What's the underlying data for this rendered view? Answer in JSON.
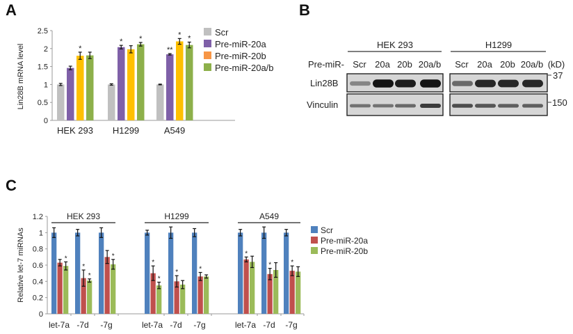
{
  "panels": {
    "a": "A",
    "b": "B",
    "c": "C"
  },
  "chart_data": [
    {
      "type": "bar",
      "panel": "A",
      "ylabel": "Lin28B mRNA level",
      "ylim": [
        0,
        2.5
      ],
      "yticks": [
        "0",
        "0.5",
        "1",
        "1.5",
        "2",
        "2.5"
      ],
      "categories": [
        "HEK 293",
        "H1299",
        "A549"
      ],
      "legend_position": "right",
      "series": [
        {
          "name": "Scr",
          "color": "#c0c0c0",
          "legend_color": "#c0c0c0",
          "values": [
            1.0,
            1.0,
            1.0
          ],
          "errors": [
            0.03,
            0.02,
            0.01
          ],
          "stars": [
            "",
            "",
            ""
          ]
        },
        {
          "name": "Pre-miR-20a",
          "color": "#7f60a8",
          "legend_color": "#7f60a8",
          "values": [
            1.46,
            2.04,
            1.84
          ],
          "errors": [
            0.05,
            0.05,
            0.02
          ],
          "stars": [
            "",
            "*",
            "**"
          ]
        },
        {
          "name": "Pre-miR-20b",
          "color": "#ffc000",
          "legend_color": "#f79646",
          "values": [
            1.8,
            1.98,
            2.2
          ],
          "errors": [
            0.1,
            0.1,
            0.08
          ],
          "stars": [
            "*",
            "",
            "*"
          ]
        },
        {
          "name": "Pre-miR-20a/b",
          "color": "#8db04a",
          "legend_color": "#8db04a",
          "values": [
            1.81,
            2.12,
            2.1
          ],
          "errors": [
            0.09,
            0.05,
            0.08
          ],
          "stars": [
            "",
            "*",
            "*"
          ]
        }
      ]
    },
    {
      "type": "bar",
      "panel": "C",
      "ylabel": "Relative let-7 miRNAs",
      "ylim": [
        0,
        1.2
      ],
      "yticks": [
        "0",
        "0.2",
        "0.4",
        "0.6",
        "0.8",
        "1",
        "1.2"
      ],
      "groups": [
        "HEK 293",
        "H1299",
        "A549"
      ],
      "categories": [
        "let-7a",
        "-7d",
        "-7g"
      ],
      "legend_position": "right",
      "series": [
        {
          "name": "Scr",
          "color": "#4f81bd",
          "values": [
            [
              1,
              1,
              1
            ],
            [
              1,
              1,
              1
            ],
            [
              1,
              1,
              1
            ]
          ],
          "errors": [
            [
              0.06,
              0.04,
              0.06
            ],
            [
              0.03,
              0.07,
              0.05
            ],
            [
              0.04,
              0.07,
              0.04
            ]
          ],
          "stars": [
            [
              "",
              "",
              ""
            ],
            [
              "",
              "",
              ""
            ],
            [
              "",
              "",
              ""
            ]
          ]
        },
        {
          "name": "Pre-miR-20a",
          "color": "#c0504d",
          "values": [
            [
              0.63,
              0.44,
              0.7
            ],
            [
              0.5,
              0.4,
              0.46
            ],
            [
              0.67,
              0.49,
              0.53
            ]
          ],
          "errors": [
            [
              0.04,
              0.1,
              0.08
            ],
            [
              0.09,
              0.07,
              0.05
            ],
            [
              0.03,
              0.07,
              0.06
            ]
          ],
          "stars": [
            [
              "",
              "*",
              ""
            ],
            [
              "*",
              "*",
              "*"
            ],
            [
              "*",
              "*",
              "*"
            ]
          ]
        },
        {
          "name": "Pre-miR-20b",
          "color": "#9bbb59",
          "values": [
            [
              0.59,
              0.41,
              0.61
            ],
            [
              0.35,
              0.36,
              0.46
            ],
            [
              0.64,
              0.54,
              0.52
            ]
          ],
          "errors": [
            [
              0.05,
              0.02,
              0.06
            ],
            [
              0.04,
              0.05,
              0.02
            ],
            [
              0.07,
              0.09,
              0.06
            ]
          ],
          "stars": [
            [
              "*",
              "*",
              "*"
            ],
            [
              "*",
              "",
              ""
            ],
            [
              "",
              "",
              ""
            ]
          ]
        }
      ]
    }
  ],
  "blot": {
    "cell_lines": [
      "HEK 293",
      "H1299"
    ],
    "row_prefix": "Pre-miR-",
    "lanes": [
      "Scr",
      "20a",
      "20b",
      "20a/b"
    ],
    "unit": "(kD)",
    "proteins": [
      "Lin28B",
      "Vinculin"
    ],
    "markers": [
      "37",
      "150"
    ],
    "band_intensity": {
      "Lin28B": [
        [
          0.35,
          0.95,
          0.9,
          0.95
        ],
        [
          0.5,
          0.85,
          0.85,
          0.85
        ]
      ],
      "Vinculin": [
        [
          0.45,
          0.45,
          0.5,
          0.75
        ],
        [
          0.65,
          0.6,
          0.55,
          0.55
        ]
      ]
    }
  }
}
